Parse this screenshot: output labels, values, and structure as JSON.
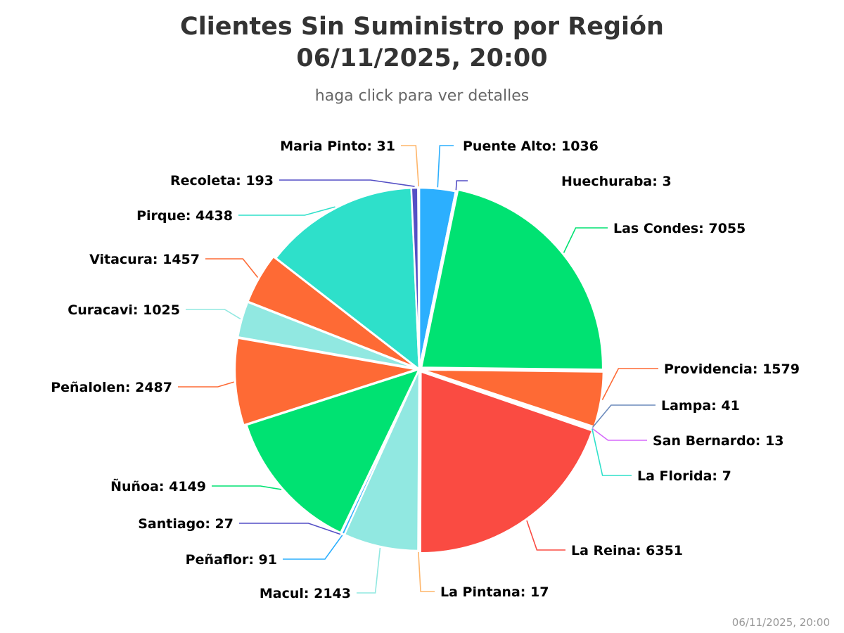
{
  "chart_data": {
    "type": "pie",
    "title": [
      "Clientes Sin Suministro por Región",
      "06/11/2025, 20:00"
    ],
    "subtitle": "haga click para ver detalles",
    "credits": "06/11/2025, 20:00",
    "slices": [
      {
        "name": "Puente Alto",
        "value": 1036,
        "color": "#2caffe"
      },
      {
        "name": "Huechuraba",
        "value": 3,
        "color": "#544fc5"
      },
      {
        "name": "Las Condes",
        "value": 7055,
        "color": "#00e272"
      },
      {
        "name": "Providencia",
        "value": 1579,
        "color": "#fe6a35"
      },
      {
        "name": "Lampa",
        "value": 41,
        "color": "#6b8abc"
      },
      {
        "name": "San Bernardo",
        "value": 13,
        "color": "#d568fb"
      },
      {
        "name": "La Florida",
        "value": 7,
        "color": "#2ee0ca"
      },
      {
        "name": "La Reina",
        "value": 6351,
        "color": "#fa4b42"
      },
      {
        "name": "La Pintana",
        "value": 17,
        "color": "#feb56a"
      },
      {
        "name": "Macul",
        "value": 2143,
        "color": "#91e8e1"
      },
      {
        "name": "Peñaflor",
        "value": 91,
        "color": "#2caffe"
      },
      {
        "name": "Santiago",
        "value": 27,
        "color": "#544fc5"
      },
      {
        "name": "Ñuñoa",
        "value": 4149,
        "color": "#00e272"
      },
      {
        "name": "Peñalolen",
        "value": 2487,
        "color": "#fe6a35"
      },
      {
        "name": "Curacavi",
        "value": 1025,
        "color": "#91e8e1"
      },
      {
        "name": "Vitacura",
        "value": 1457,
        "color": "#fe6a35"
      },
      {
        "name": "Pirque",
        "value": 4438,
        "color": "#2ee0ca"
      },
      {
        "name": "Recoleta",
        "value": 193,
        "color": "#544fc5"
      },
      {
        "name": "Maria Pinto",
        "value": 31,
        "color": "#feb56a"
      }
    ]
  }
}
